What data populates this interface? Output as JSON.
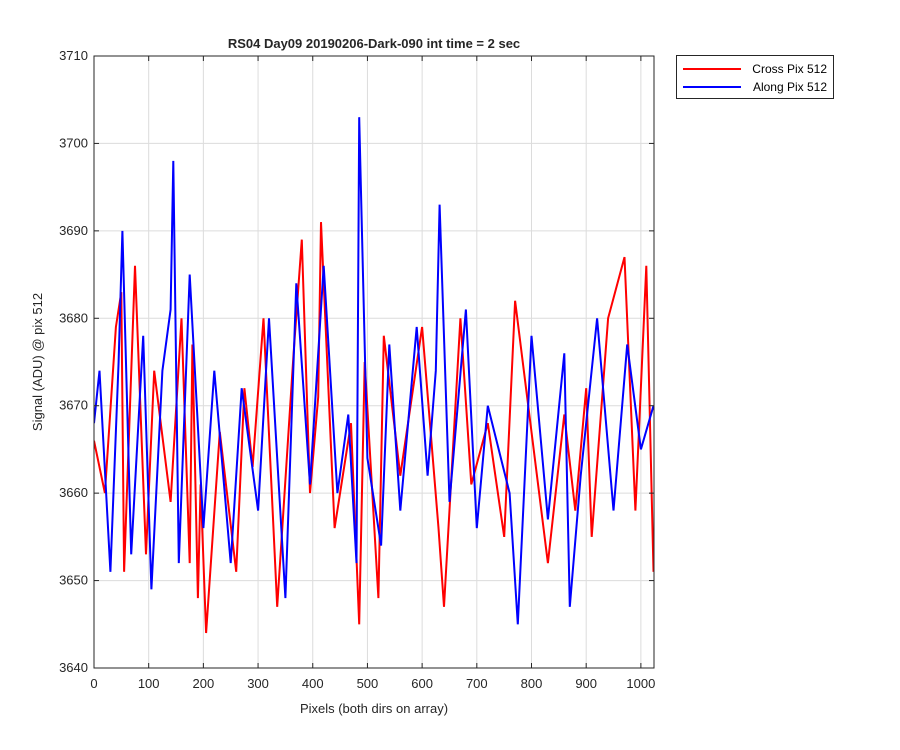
{
  "chart_data": {
    "type": "line",
    "title": "RS04 Day09 20190206-Dark-090 int time = 2 sec",
    "xlabel": "Pixels (both dirs on array)",
    "ylabel": "Signal (ADU) @ pix 512",
    "xlim": [
      0,
      1024
    ],
    "ylim": [
      3640,
      3710
    ],
    "xticks": [
      0,
      100,
      200,
      300,
      400,
      500,
      600,
      700,
      800,
      900,
      1000
    ],
    "yticks": [
      3640,
      3650,
      3660,
      3670,
      3680,
      3690,
      3700,
      3710
    ],
    "grid": true,
    "legend_position": "outside-top-right",
    "series": [
      {
        "name": "Cross Pix 512",
        "color": "#ff0000",
        "x": [
          0,
          20,
          40,
          50,
          55,
          75,
          95,
          110,
          140,
          160,
          175,
          180,
          190,
          195,
          205,
          230,
          260,
          275,
          290,
          310,
          335,
          365,
          380,
          395,
          410,
          415,
          440,
          470,
          485,
          495,
          520,
          530,
          560,
          600,
          630,
          640,
          670,
          690,
          720,
          750,
          770,
          830,
          860,
          880,
          900,
          910,
          940,
          970,
          990,
          1010,
          1023
        ],
        "y": [
          3666,
          3660,
          3679,
          3683,
          3651,
          3686,
          3653,
          3674,
          3659,
          3680,
          3652,
          3677,
          3648,
          3661,
          3644,
          3667,
          3651,
          3672,
          3663,
          3680,
          3647,
          3676,
          3689,
          3660,
          3671,
          3691,
          3656,
          3668,
          3645,
          3675,
          3648,
          3678,
          3662,
          3679,
          3656,
          3647,
          3680,
          3661,
          3668,
          3655,
          3682,
          3652,
          3669,
          3658,
          3672,
          3655,
          3680,
          3687,
          3658,
          3686,
          3651
        ]
      },
      {
        "name": "Along Pix 512",
        "color": "#0000ff",
        "x": [
          0,
          10,
          30,
          45,
          52,
          68,
          90,
          105,
          125,
          140,
          145,
          155,
          175,
          200,
          220,
          250,
          270,
          300,
          320,
          350,
          370,
          395,
          420,
          445,
          465,
          480,
          485,
          500,
          525,
          540,
          560,
          590,
          610,
          625,
          632,
          650,
          680,
          700,
          720,
          760,
          775,
          800,
          830,
          860,
          870,
          890,
          920,
          950,
          975,
          1000,
          1023
        ],
        "y": [
          3668,
          3674,
          3651,
          3675,
          3690,
          3653,
          3678,
          3649,
          3674,
          3681,
          3698,
          3652,
          3685,
          3656,
          3674,
          3652,
          3672,
          3658,
          3680,
          3648,
          3684,
          3661,
          3686,
          3660,
          3669,
          3652,
          3703,
          3664,
          3654,
          3677,
          3658,
          3679,
          3662,
          3674,
          3693,
          3659,
          3681,
          3656,
          3670,
          3660,
          3645,
          3678,
          3657,
          3676,
          3647,
          3662,
          3680,
          3658,
          3677,
          3665,
          3670
        ]
      }
    ]
  }
}
